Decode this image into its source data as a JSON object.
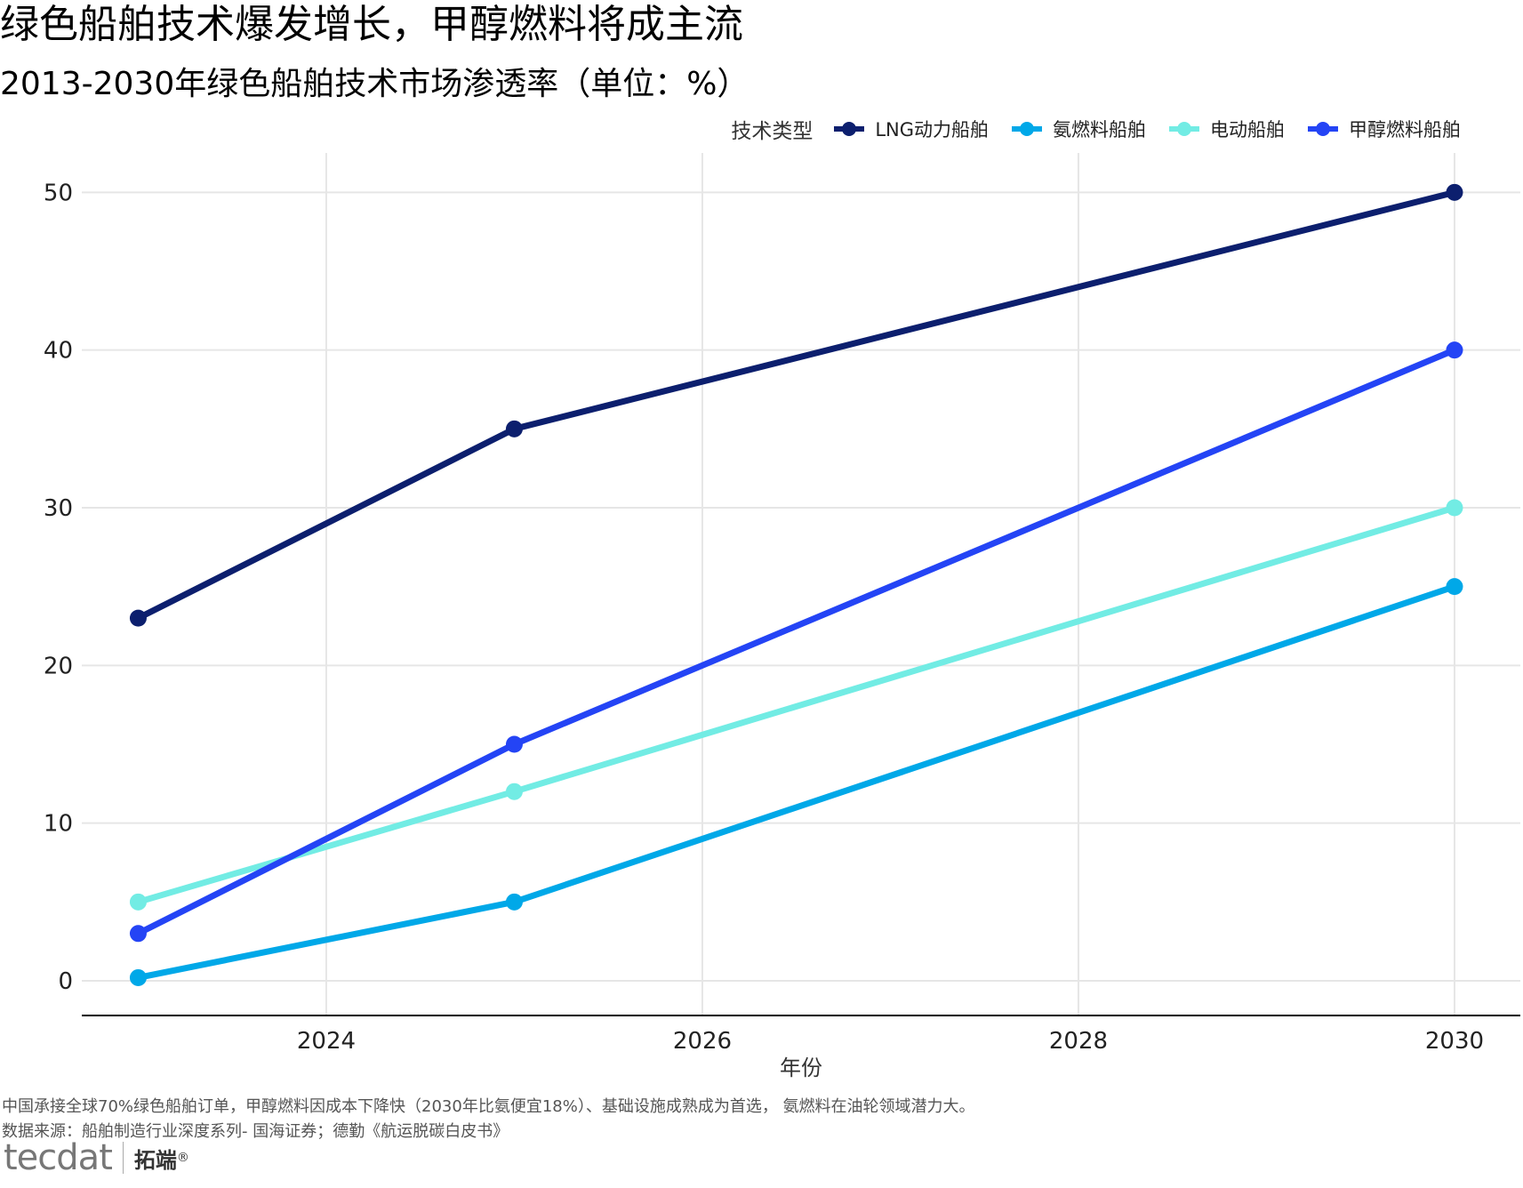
{
  "title": "绿色船舶技术爆发增长，甲醇燃料将成主流",
  "subtitle": "2013-2030年绿色船舶技术市场渗透率（单位：%）",
  "legend": {
    "title": "技术类型",
    "items": [
      {
        "label": "LNG动力船舶",
        "color": "#0c1f6e"
      },
      {
        "label": "氨燃料船舶",
        "color": "#00a8e8"
      },
      {
        "label": "电动船舶",
        "color": "#72ece4"
      },
      {
        "label": "甲醇燃料船舶",
        "color": "#2444f5"
      }
    ]
  },
  "caption": {
    "note": "中国承接全球70%绿色船舶订单，甲醇燃料因成本下降快（2030年比氨便宜18%）、基础设施成熟成为首选，  氨燃料在油轮领域潜力大。",
    "source": "数据来源：船舶制造行业深度系列- 国海证券；德勤《航运脱碳白皮书》"
  },
  "logo": {
    "mark": "tecdat",
    "name": "拓端",
    "reg": "®"
  },
  "chart_data": {
    "type": "line",
    "title": "",
    "xlabel": "年份",
    "ylabel": "",
    "x": [
      2023,
      2025,
      2030
    ],
    "xlim": [
      2022.7,
      2030.35
    ],
    "ylim": [
      -2.2,
      52.5
    ],
    "xticks": [
      2024,
      2026,
      2028,
      2030
    ],
    "yticks": [
      0,
      10,
      20,
      30,
      40,
      50
    ],
    "grid": true,
    "legend_position": "top-right",
    "series": [
      {
        "name": "LNG动力船舶",
        "color": "#0c1f6e",
        "values": [
          23,
          35,
          50
        ]
      },
      {
        "name": "氨燃料船舶",
        "color": "#00a8e8",
        "values": [
          0.2,
          5,
          25
        ]
      },
      {
        "name": "电动船舶",
        "color": "#72ece4",
        "values": [
          5,
          12,
          30
        ]
      },
      {
        "name": "甲醇燃料船舶",
        "color": "#2444f5",
        "values": [
          3,
          15,
          40
        ]
      }
    ]
  }
}
